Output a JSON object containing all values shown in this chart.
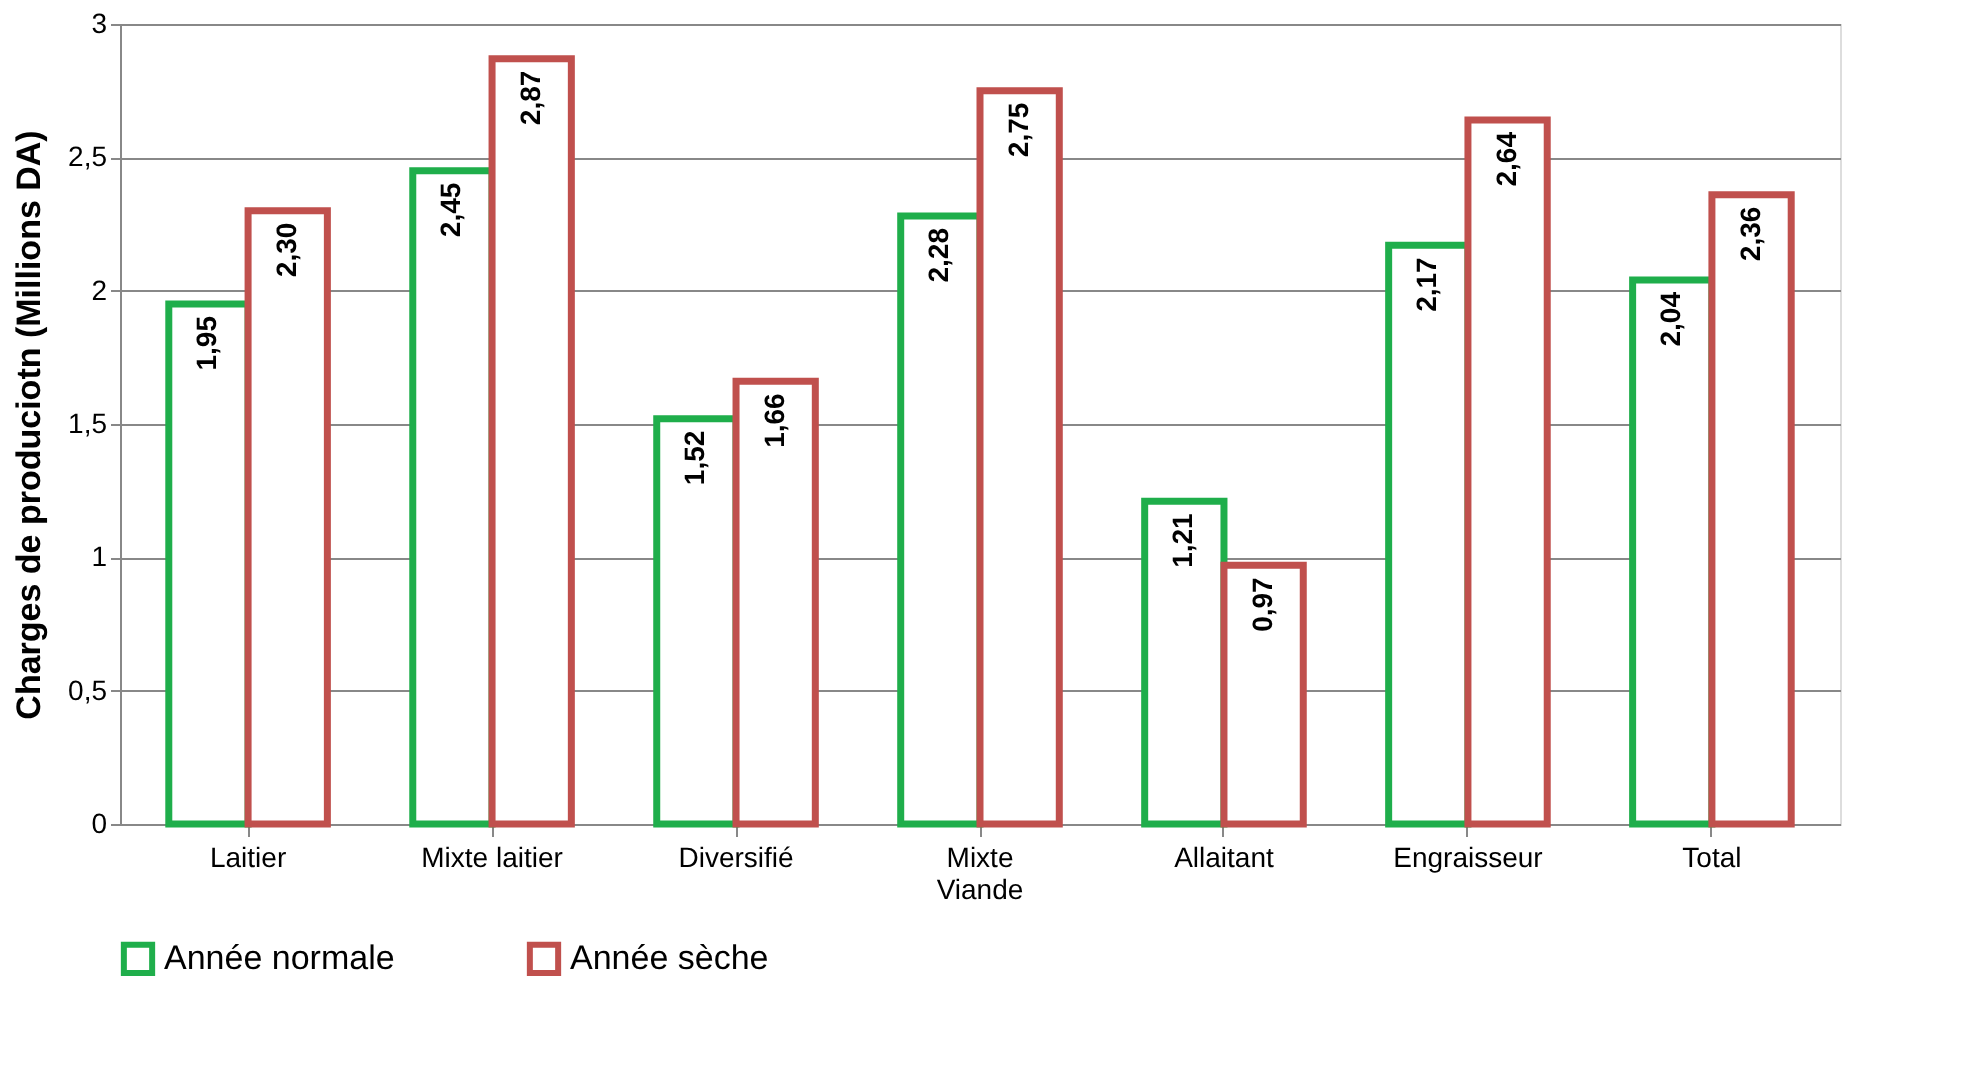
{
  "chart_data": {
    "type": "bar",
    "ylabel": "Charges de produciotn (Millions DA)",
    "categories": [
      "Laitier",
      "Mixte laitier",
      "Diversifié",
      "Mixte\nViande",
      "Allaitant",
      "Engraisseur",
      "Total"
    ],
    "series": [
      {
        "name": "Année normale",
        "color": "#1fae4b",
        "values": [
          1.95,
          2.45,
          1.52,
          2.28,
          1.21,
          2.17,
          2.04
        ],
        "value_labels": [
          "1,95",
          "2,45",
          "1,52",
          "2,28",
          "1,21",
          "2,17",
          "2,04"
        ]
      },
      {
        "name": "Année sèche",
        "color": "#c0504d",
        "values": [
          2.3,
          2.87,
          1.66,
          2.75,
          0.97,
          2.64,
          2.36
        ],
        "value_labels": [
          "2,30",
          "2,87",
          "1,66",
          "2,75",
          "0,97",
          "2,64",
          "2,36"
        ]
      }
    ],
    "ylim": [
      0,
      3
    ],
    "yticks": [
      0,
      {
        "value": 0.5,
        "label": "0,5"
      },
      1,
      {
        "value": 1.5,
        "label": "1,5"
      },
      2,
      {
        "value": 2.5,
        "label": "2,5"
      },
      3
    ],
    "grid": "y",
    "legend": "bottom"
  }
}
